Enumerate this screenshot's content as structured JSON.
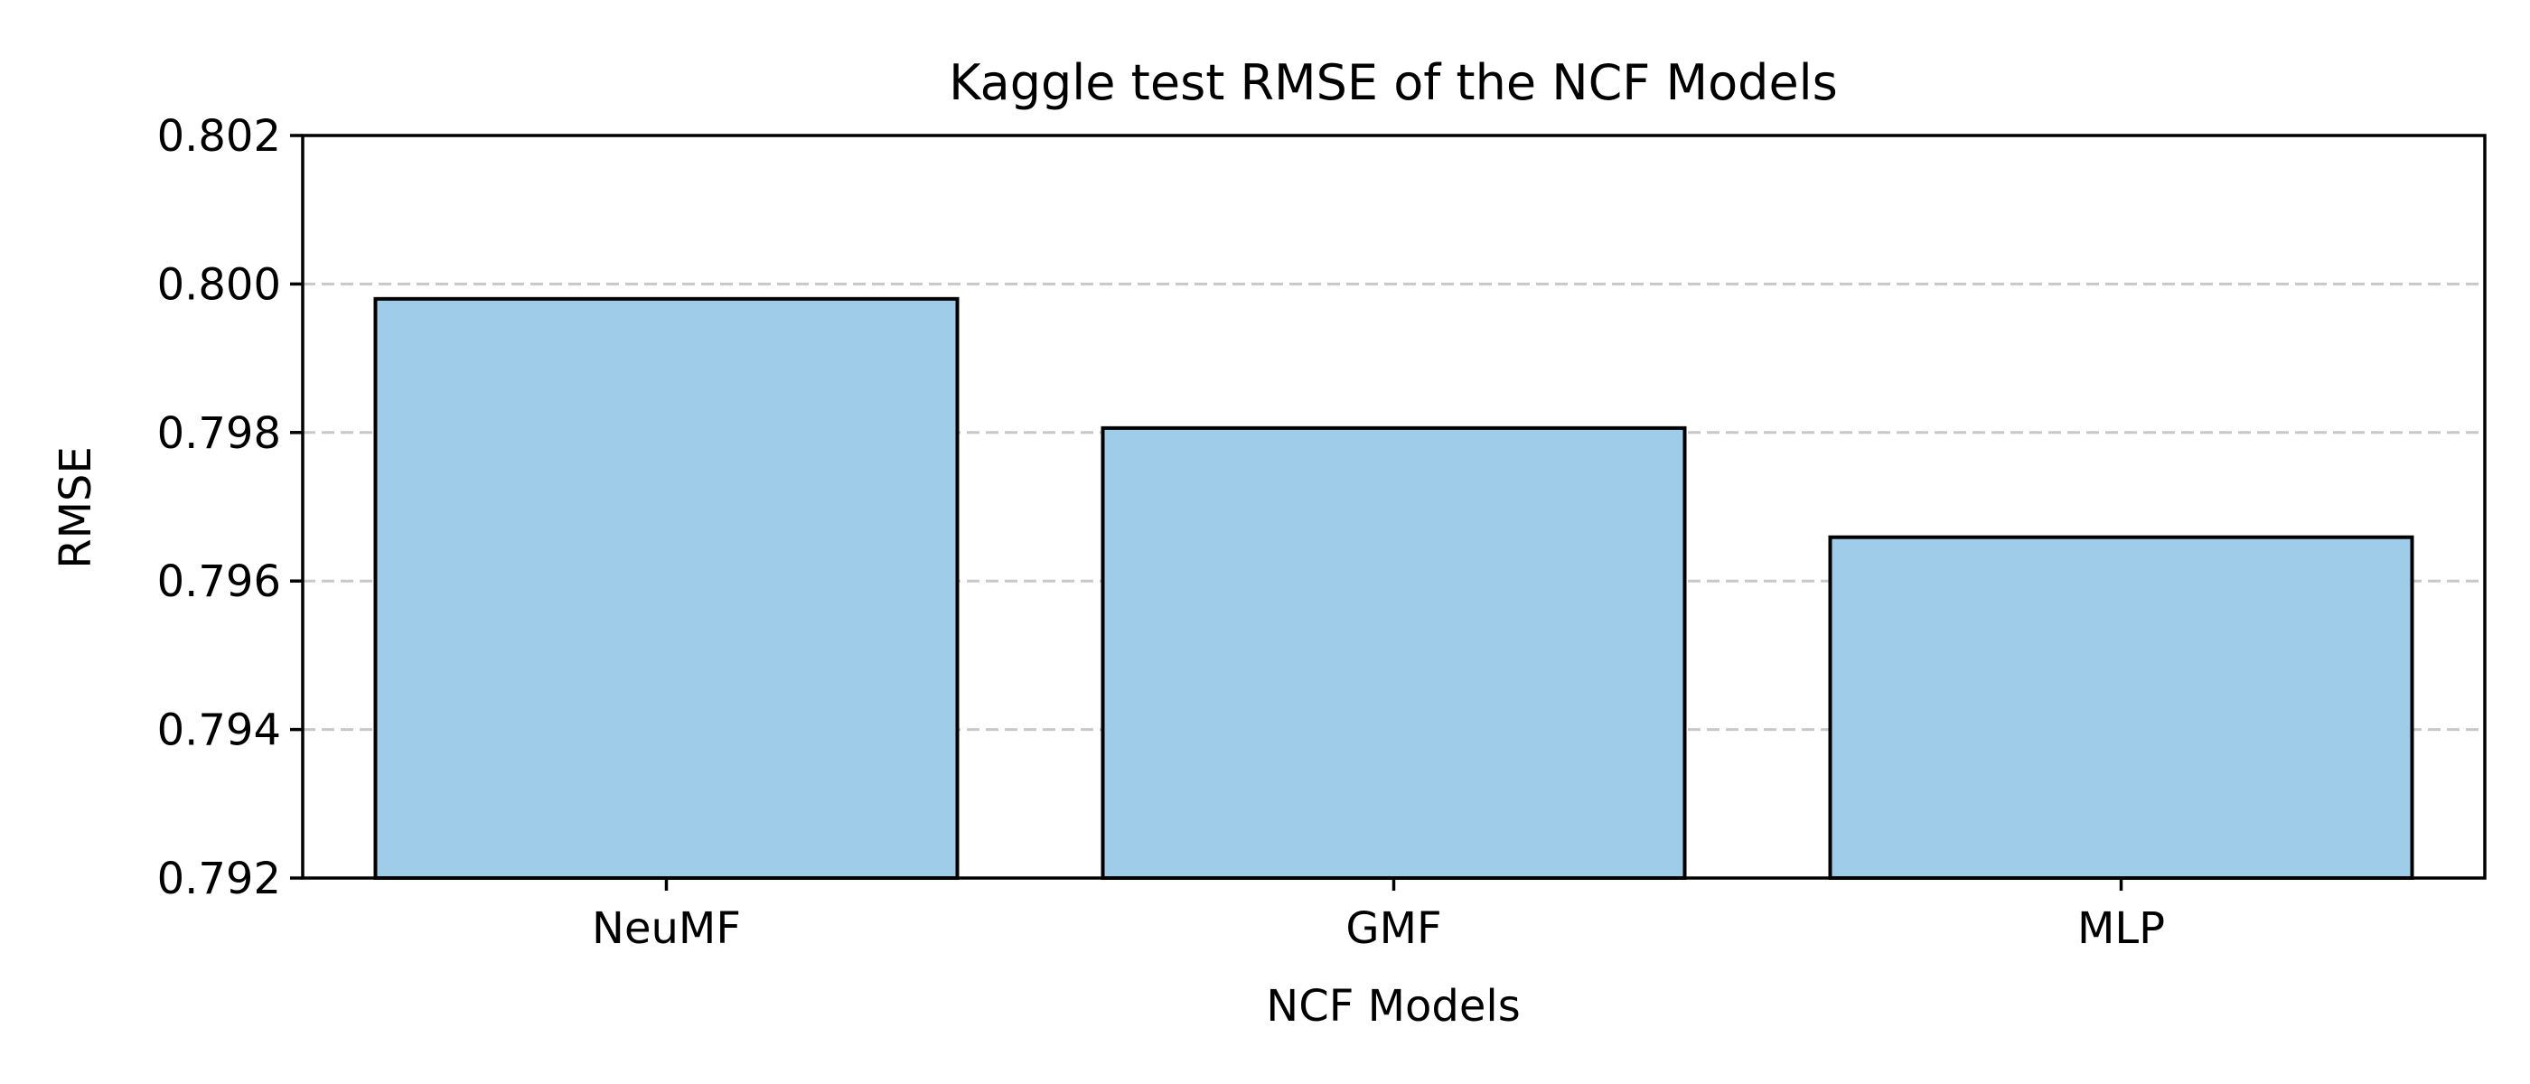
{
  "chart_data": {
    "type": "bar",
    "title": "Kaggle test RMSE of the NCF Models",
    "xlabel": "NCF Models",
    "ylabel": "RMSE",
    "categories": [
      "NeuMF",
      "GMF",
      "MLP"
    ],
    "values": [
      0.7998,
      0.79806,
      0.79659
    ],
    "ylim": [
      0.792,
      0.802
    ],
    "yticks": [
      "0.792",
      "0.794",
      "0.796",
      "0.798",
      "0.800",
      "0.802"
    ],
    "ytick_values": [
      0.792,
      0.794,
      0.796,
      0.798,
      0.8,
      0.802
    ],
    "grid": "y, dashed",
    "bar_color": "#9ecce9",
    "edge_color": "#000000"
  }
}
